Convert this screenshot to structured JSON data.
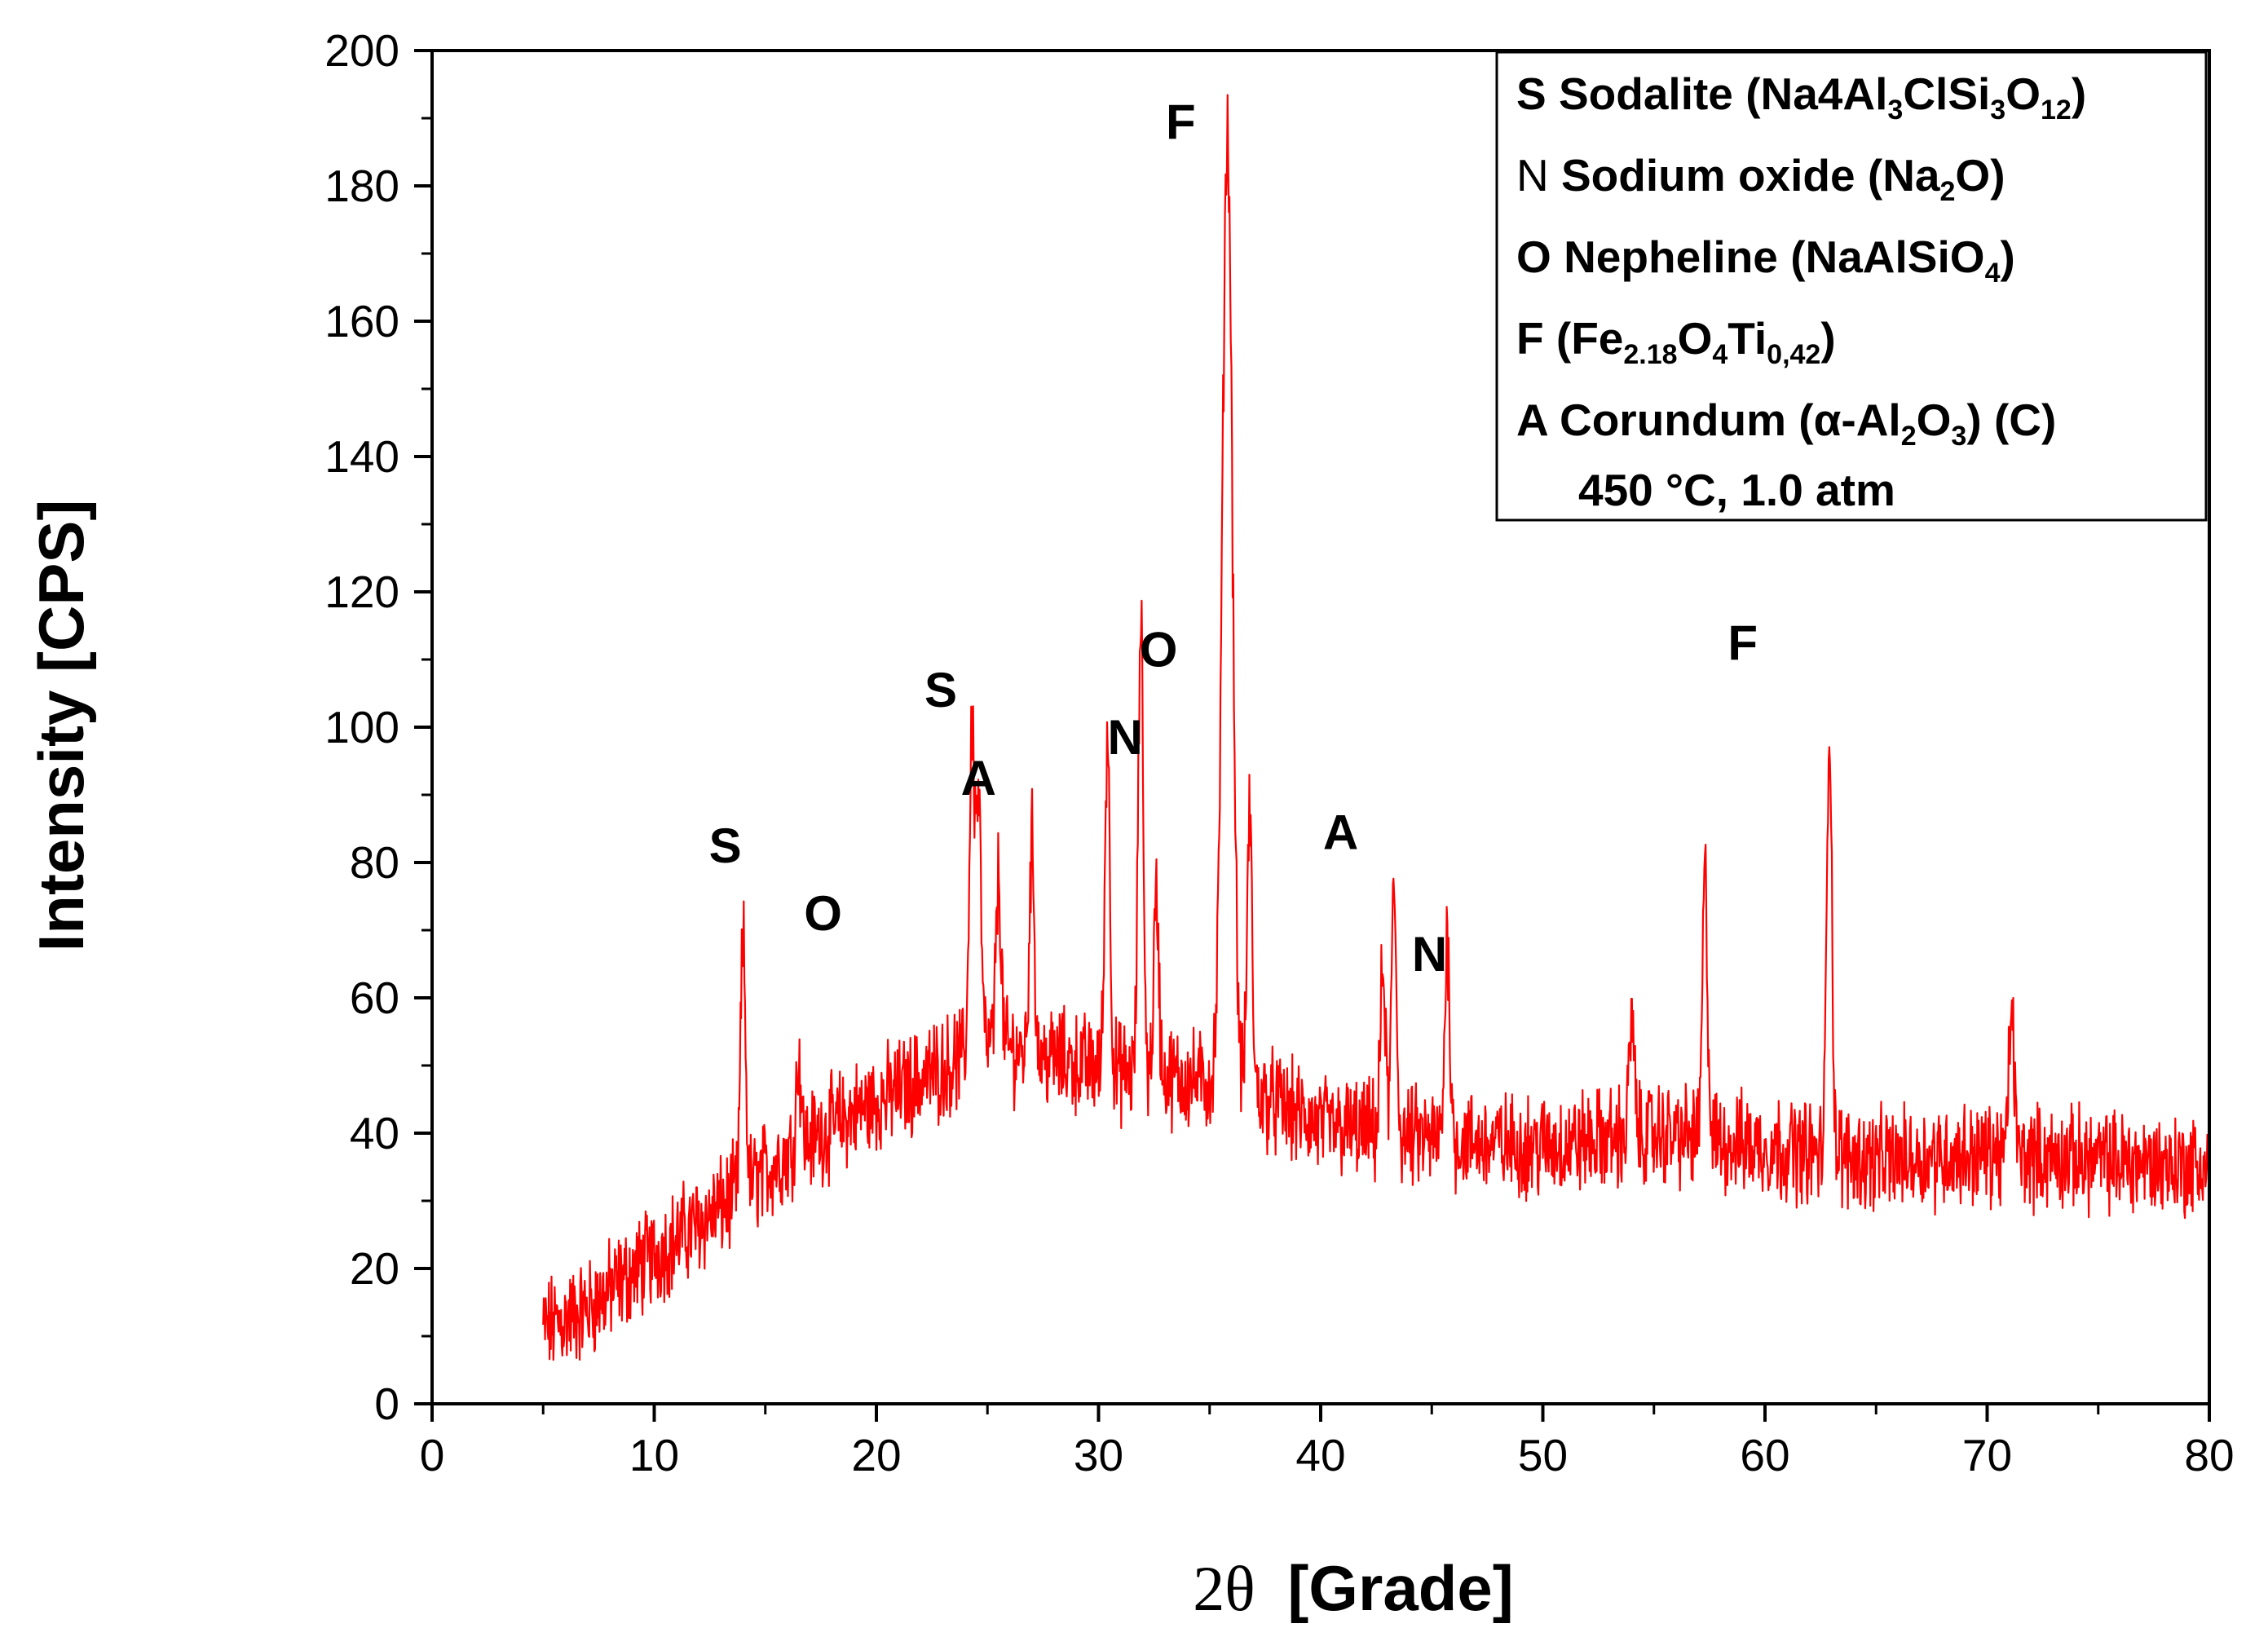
{
  "chart_data": {
    "type": "line",
    "title": "",
    "xlabel_prefix": "2θ",
    "xlabel_suffix": "[Grade]",
    "ylabel": "Intensity [CPS]",
    "xlim": [
      0,
      80
    ],
    "ylim": [
      0,
      200
    ],
    "x_ticks": [
      0,
      10,
      20,
      30,
      40,
      50,
      60,
      70,
      80
    ],
    "x_tick_labels": [
      "0",
      "10",
      "20",
      "30",
      "40",
      "50",
      "60",
      "70",
      "80"
    ],
    "y_ticks": [
      0,
      20,
      40,
      60,
      80,
      100,
      120,
      140,
      160,
      180,
      200
    ],
    "y_tick_labels": [
      "0",
      "20",
      "40",
      "60",
      "80",
      "100",
      "120",
      "140",
      "160",
      "180",
      "200"
    ],
    "grid": false,
    "series": [
      {
        "name": "450 °C, 1.0 atm",
        "color": "#ff0000",
        "x_start": 5,
        "x_end": 80,
        "baseline": [
          [
            5,
            11
          ],
          [
            7,
            14
          ],
          [
            10,
            22
          ],
          [
            13,
            29
          ],
          [
            16,
            37
          ],
          [
            19,
            43
          ],
          [
            22,
            48
          ],
          [
            25,
            53
          ],
          [
            28,
            51
          ],
          [
            31,
            49
          ],
          [
            34,
            48
          ],
          [
            37,
            46
          ],
          [
            40,
            41
          ],
          [
            45,
            39
          ],
          [
            50,
            38
          ],
          [
            55,
            40
          ],
          [
            60,
            38
          ],
          [
            65,
            36
          ],
          [
            70,
            37
          ],
          [
            75,
            36
          ],
          [
            80,
            35
          ]
        ],
        "noise_amplitude": 6,
        "peaks": [
          {
            "x": 14.0,
            "y": 68,
            "phase": "S"
          },
          {
            "x": 16.5,
            "y": 51,
            "phase": "O"
          },
          {
            "x": 24.3,
            "y": 100,
            "phase": "S"
          },
          {
            "x": 24.6,
            "y": 89,
            "phase": "A"
          },
          {
            "x": 25.5,
            "y": 78,
            "phase": ""
          },
          {
            "x": 27.0,
            "y": 83,
            "phase": ""
          },
          {
            "x": 30.4,
            "y": 99,
            "phase": "N"
          },
          {
            "x": 31.9,
            "y": 116,
            "phase": "O"
          },
          {
            "x": 32.6,
            "y": 75,
            "phase": ""
          },
          {
            "x": 35.8,
            "y": 188,
            "phase": "F"
          },
          {
            "x": 36.8,
            "y": 87,
            "phase": ""
          },
          {
            "x": 43.3,
            "y": 75,
            "phase": "A"
          },
          {
            "x": 42.8,
            "y": 64,
            "phase": ""
          },
          {
            "x": 45.7,
            "y": 69,
            "phase": "N"
          },
          {
            "x": 54.0,
            "y": 57,
            "phase": ""
          },
          {
            "x": 57.3,
            "y": 78,
            "phase": ""
          },
          {
            "x": 62.9,
            "y": 101,
            "phase": "F"
          },
          {
            "x": 71.1,
            "y": 59,
            "phase": ""
          }
        ]
      }
    ],
    "annotations": [
      {
        "text": "S",
        "x": 13.2,
        "y": 80
      },
      {
        "text": "O",
        "x": 17.6,
        "y": 70
      },
      {
        "text": "S",
        "x": 22.9,
        "y": 103
      },
      {
        "text": "A",
        "x": 24.6,
        "y": 90
      },
      {
        "text": "N",
        "x": 31.2,
        "y": 96
      },
      {
        "text": "O",
        "x": 32.7,
        "y": 109
      },
      {
        "text": "F",
        "x": 33.7,
        "y": 187
      },
      {
        "text": "A",
        "x": 40.9,
        "y": 82
      },
      {
        "text": "N",
        "x": 44.9,
        "y": 64
      },
      {
        "text": "F",
        "x": 59.0,
        "y": 110
      }
    ],
    "legend": {
      "position": "top-right",
      "entries": [
        {
          "letter": "S",
          "name": "Sodalite",
          "formula": [
            [
              "(Na4Al",
              "sub"
            ],
            [
              "3",
              "sub-val"
            ],
            [
              "ClSi",
              ""
            ],
            [
              "3",
              "sub-val"
            ],
            [
              "O",
              ""
            ],
            [
              "12",
              "sub-val"
            ],
            [
              ")",
              ""
            ]
          ]
        },
        {
          "letter": "N",
          "name": "Sodium oxide",
          "formula": [
            [
              "(Na",
              ""
            ],
            [
              "2",
              "sub-val"
            ],
            [
              "O)",
              ""
            ]
          ]
        },
        {
          "letter": "O",
          "name": "Nepheline",
          "formula": [
            [
              "(NaAlSiO",
              ""
            ],
            [
              "4",
              "sub-val"
            ],
            [
              ")",
              ""
            ]
          ]
        },
        {
          "letter": "F",
          "name": "",
          "formula": [
            [
              "(Fe",
              ""
            ],
            [
              "2.18",
              "sub-val"
            ],
            [
              "O",
              ""
            ],
            [
              "4",
              "sub-val"
            ],
            [
              "Ti",
              ""
            ],
            [
              "0,42",
              "sub-val"
            ],
            [
              ")",
              ""
            ]
          ]
        },
        {
          "letter": "A",
          "name": "Corundum",
          "formula": [
            [
              "(α-Al",
              ""
            ],
            [
              "2",
              "sub-val"
            ],
            [
              "O",
              ""
            ],
            [
              "3",
              "sub-val"
            ],
            [
              ") (C)",
              ""
            ]
          ]
        }
      ],
      "condition": "450 °C, 1.0 atm"
    }
  }
}
